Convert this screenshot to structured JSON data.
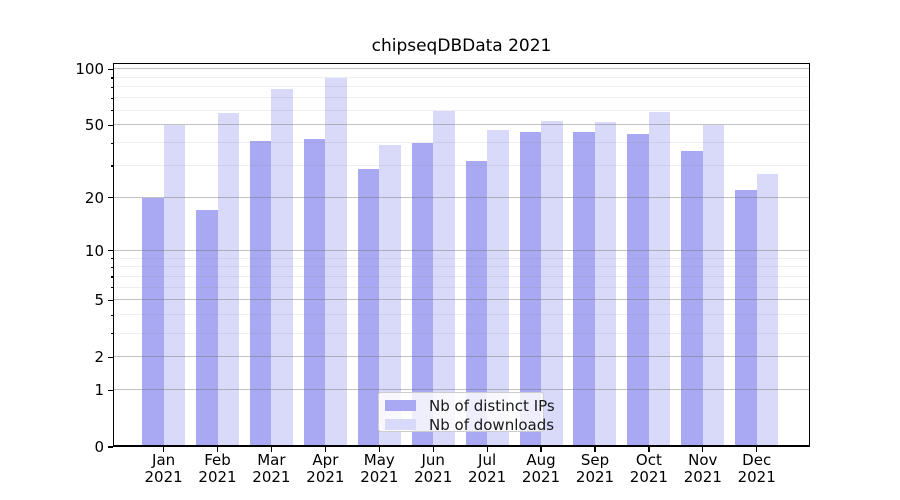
{
  "title": "chipseqDBData 2021",
  "chart_data": {
    "type": "bar",
    "title": "chipseqDBData 2021",
    "categories": [
      "Jan",
      "Feb",
      "Mar",
      "Apr",
      "May",
      "Jun",
      "Jul",
      "Aug",
      "Sep",
      "Oct",
      "Nov",
      "Dec"
    ],
    "x_tick_line2": "2021",
    "series": [
      {
        "name": "Nb of distinct IPs",
        "color": "#a9a9f3",
        "values": [
          20,
          17,
          41,
          42,
          29,
          40,
          32,
          46,
          46,
          45,
          36,
          22
        ]
      },
      {
        "name": "Nb of downloads",
        "color": "#d9d9fa",
        "values": [
          50,
          58,
          78,
          90,
          39,
          60,
          47,
          53,
          52,
          59,
          50,
          27
        ]
      }
    ],
    "xlabel": "",
    "ylabel": "",
    "y_scale": "log10(value+1)",
    "y_ticks_major": [
      0,
      1,
      2,
      5,
      10,
      20,
      50,
      100
    ],
    "y_ticks_minor": [
      3,
      4,
      6,
      7,
      8,
      9,
      30,
      40,
      60,
      70,
      80,
      90
    ],
    "ylim": [
      0,
      108
    ],
    "grid": "horizontal major and minor gridlines drawn above bars",
    "legend_position": "lower center inside plot",
    "bar_layout": "grouped pairs, IPs bar left of month center, downloads bar right"
  },
  "legend": {
    "items": [
      {
        "label": "Nb of distinct IPs",
        "color": "#a9a9f3"
      },
      {
        "label": "Nb of downloads",
        "color": "#d9d9fa"
      }
    ]
  },
  "colors": {
    "background": "#ffffff",
    "axis": "#000000",
    "grid_major": "#b0b0b0",
    "grid_minor": "#e4e4e4",
    "text": "#000000"
  }
}
